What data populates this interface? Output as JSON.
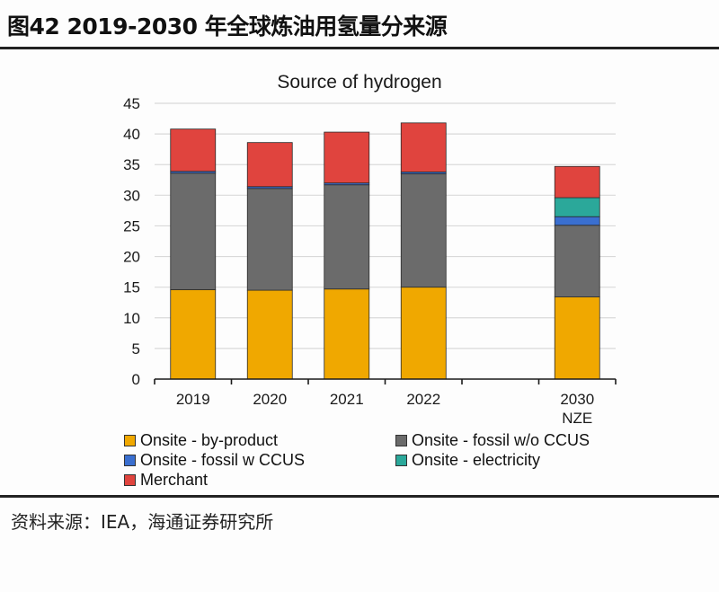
{
  "figure": {
    "title": "图42 2019-2030 年全球炼油用氢量分来源",
    "source": "资料来源：IEA，海通证券研究所"
  },
  "chart_data": {
    "type": "bar",
    "stacked": true,
    "title": "Source of hydrogen",
    "xlabel": "",
    "ylabel": "",
    "categories": [
      "2019",
      "2020",
      "2021",
      "2022",
      "",
      "2030\nNZE"
    ],
    "category_labels": [
      [
        "2019"
      ],
      [
        "2020"
      ],
      [
        "2021"
      ],
      [
        "2022"
      ],
      [],
      [
        "2030",
        "NZE"
      ]
    ],
    "ylim": [
      0,
      45
    ],
    "yticks": [
      0,
      5,
      10,
      15,
      20,
      25,
      30,
      35,
      40,
      45
    ],
    "ytick_labels": [
      "0",
      "5",
      "10",
      "15",
      "20",
      "25",
      "30",
      "35",
      "40",
      "45"
    ],
    "grid": true,
    "legend_position": "bottom",
    "series": [
      {
        "name": "Onsite - by-product",
        "color": "#F0A800",
        "values": [
          14.6,
          14.5,
          14.7,
          15.0,
          null,
          13.4
        ]
      },
      {
        "name": "Onsite - fossil w/o CCUS",
        "color": "#6B6B6B",
        "values": [
          19.0,
          16.6,
          17.0,
          18.5,
          null,
          11.7
        ]
      },
      {
        "name": "Onsite - fossil w CCUS",
        "color": "#3A6FD0",
        "values": [
          0.3,
          0.3,
          0.3,
          0.3,
          null,
          1.4
        ]
      },
      {
        "name": "Onsite - electricity",
        "color": "#2BA89A",
        "values": [
          0,
          0,
          0,
          0,
          null,
          3.1
        ]
      },
      {
        "name": "Merchant",
        "color": "#E0443E",
        "values": [
          6.9,
          7.2,
          8.3,
          8.0,
          null,
          5.1
        ]
      }
    ],
    "legend_order": [
      0,
      1,
      2,
      3,
      4
    ]
  }
}
